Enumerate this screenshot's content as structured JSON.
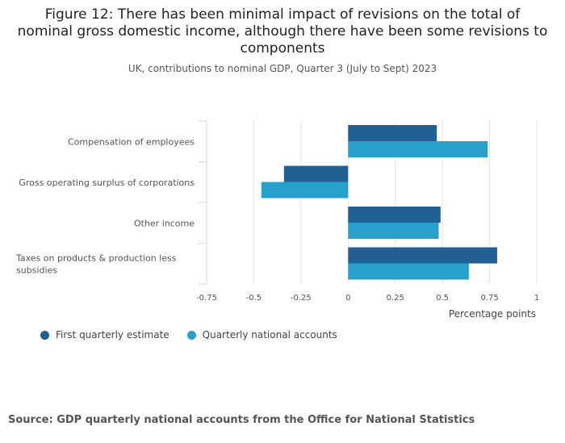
{
  "chart_data": {
    "type": "bar",
    "orientation": "horizontal",
    "title": "Figure 12: There has been minimal impact of revisions on the total of nominal gross domestic income, although there have been some revisions to components",
    "subtitle": "UK, contributions to nominal GDP, Quarter 3 (July to Sept) 2023",
    "xlabel": "Percentage points",
    "ylabel": "",
    "xlim": [
      -0.75,
      1
    ],
    "xticks": [
      -0.75,
      -0.5,
      -0.25,
      0,
      0.25,
      0.5,
      0.75,
      1
    ],
    "xtick_labels": [
      "-0.75",
      "-0.5",
      "-0.25",
      "0",
      "0.25",
      "0.5",
      "0.75",
      "1"
    ],
    "grid": true,
    "legend_position": "bottom-left",
    "categories": [
      "Compensation of employees",
      "Gross operating surplus of corporations",
      "Other income",
      "Taxes on products & production less subsidies"
    ],
    "category_label_lines": [
      [
        "Compensation of employees"
      ],
      [
        "Gross operating surplus of corporations"
      ],
      [
        "Other income"
      ],
      [
        "Taxes on products & production less",
        "subsidies"
      ]
    ],
    "series": [
      {
        "name": "First quarterly estimate",
        "color": "#206095",
        "values": [
          0.47,
          -0.34,
          0.49,
          0.79
        ]
      },
      {
        "name": "Quarterly national accounts",
        "color": "#27a0cc",
        "values": [
          0.74,
          -0.46,
          0.48,
          0.64
        ]
      }
    ]
  },
  "source": "Source: GDP quarterly national accounts from the Office for National Statistics"
}
